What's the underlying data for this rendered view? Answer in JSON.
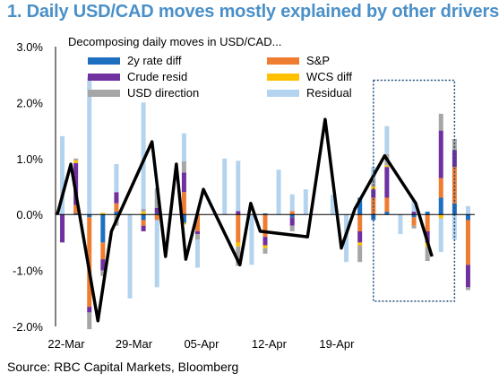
{
  "title": "1. Daily USD/CAD moves mostly explained by other drivers",
  "source": "Source: RBC Capital Markets, Bloomberg",
  "colors": {
    "rate": "#1f6fc0",
    "sp": "#ee7d31",
    "crude": "#7030a0",
    "wcs": "#ffc000",
    "usd": "#a6a6a6",
    "resid": "#b4d3ee",
    "line": "#000000",
    "highlight": "#1f4e79"
  },
  "chart_data": {
    "type": "bar",
    "stacked": true,
    "title": "Decomposing daily moves in USD/CAD...",
    "ylim": [
      -2.0,
      3.0
    ],
    "yticks": [
      "3.0%",
      "2.0%",
      "1.0%",
      "0.0%",
      "-1.0%",
      "-2.0%"
    ],
    "ytick_values": [
      3.0,
      2.0,
      1.0,
      0.0,
      -1.0,
      -2.0
    ],
    "xticks": [
      "22-Mar",
      "29-Mar",
      "05-Apr",
      "12-Apr",
      "19-Apr"
    ],
    "xtick_index": [
      0,
      5,
      10,
      15,
      20
    ],
    "legend": [
      "2y rate diff",
      "S&P",
      "Crude resid",
      "WCS diff",
      "USD direction",
      "Residual"
    ],
    "series": [
      {
        "name": "2y rate diff",
        "key": "rate",
        "values": [
          0,
          0.02,
          -0.05,
          -0.5,
          0.05,
          0,
          -0.1,
          0.02,
          0,
          -0.15,
          0.01,
          0,
          0,
          0,
          0,
          0.02,
          0,
          -0.05,
          0,
          0,
          0,
          0,
          0.3,
          -0.1,
          0.05,
          0,
          -0.05,
          0.05,
          0.3,
          0.2,
          -0.1,
          0.15
        ]
      },
      {
        "name": "S&P",
        "key": "sp",
        "values": [
          0,
          0.15,
          -1.6,
          -0.3,
          0.15,
          0,
          -0.1,
          -0.1,
          0,
          0.4,
          -0.3,
          0,
          0,
          -0.5,
          0,
          -0.4,
          0,
          0.06,
          0,
          0,
          0,
          0,
          -0.3,
          0.3,
          0.25,
          0,
          -0.15,
          -0.3,
          0.35,
          0.65,
          -0.8,
          -0.05
        ]
      },
      {
        "name": "Crude resid",
        "key": "crude",
        "values": [
          -0.5,
          0.75,
          -0.1,
          -0.2,
          0.2,
          0,
          -0.1,
          0.1,
          0,
          0.35,
          -0.05,
          0,
          0,
          0.06,
          0,
          -0.15,
          0,
          -0.15,
          0,
          0,
          0,
          0,
          -0.2,
          0.15,
          0.55,
          0,
          0.05,
          -0.2,
          0.85,
          0.3,
          -0.4,
          -0.06
        ]
      },
      {
        "name": "WCS diff",
        "key": "wcs",
        "values": [
          0,
          0.05,
          0,
          0.03,
          0,
          0,
          0.05,
          0,
          0,
          -0.03,
          0,
          0,
          0,
          -0.07,
          0,
          -0.05,
          0,
          0,
          0,
          0,
          0,
          0,
          -0.05,
          0.05,
          0.03,
          0,
          0,
          -0.08,
          -0.07,
          0,
          0,
          0
        ]
      },
      {
        "name": "USD direction",
        "key": "usd",
        "values": [
          0,
          0.03,
          -0.3,
          -0.1,
          -0.2,
          0,
          0.05,
          0.35,
          0,
          0.2,
          -0.1,
          0,
          0,
          -0.35,
          0,
          -0.1,
          0,
          -0.1,
          0,
          0,
          0,
          0,
          -0.3,
          0.15,
          0.2,
          0,
          -0.05,
          -0.25,
          0.3,
          0.2,
          -0.05,
          -0.05
        ]
      },
      {
        "name": "Residual",
        "key": "resid",
        "values": [
          1.4,
          0,
          2.45,
          0,
          0.5,
          -1.5,
          1.9,
          -1.2,
          0,
          0.5,
          -0.5,
          0,
          1.0,
          0.9,
          -0.9,
          0,
          0.8,
          0.3,
          0.45,
          0,
          0.35,
          -0.85,
          0,
          0.2,
          0.5,
          -0.35,
          0.2,
          0,
          -0.6,
          -0.45,
          0.15,
          -0.85
        ]
      }
    ],
    "line_values": [
      0,
      0.9,
      -1.9,
      -0.3,
      1.3,
      -0.75,
      0.9,
      -0.8,
      0.45,
      -0.9,
      0.2,
      -0.3,
      -0.4,
      1.7,
      -0.6,
      0.1,
      1.05,
      0.2,
      -0.75
    ],
    "line_index": [
      0,
      1,
      3,
      4,
      7,
      8,
      8.8,
      9.5,
      10.8,
      13.5,
      14.3,
      15,
      18.5,
      19.8,
      21,
      22,
      24.2,
      26.5,
      27.7
    ],
    "highlight_index_range": [
      23.5,
      29.5
    ]
  }
}
